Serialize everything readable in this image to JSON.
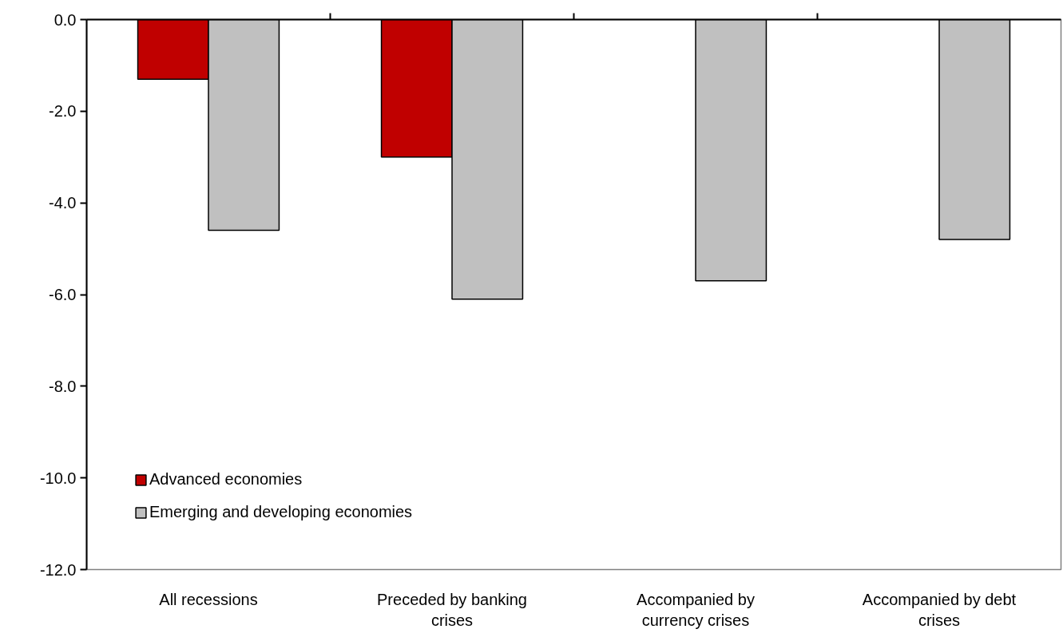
{
  "chart_data": {
    "type": "bar",
    "categories": [
      "All recessions",
      "Preceded by banking crises",
      "Accompanied by currency crises",
      "Accompanied by debt crises"
    ],
    "series": [
      {
        "name": "Advanced economies",
        "color": "#c00000",
        "values": [
          -1.3,
          -3.0,
          null,
          null
        ]
      },
      {
        "name": "Emerging and developing economies",
        "color": "#c0c0c0",
        "values": [
          -4.6,
          -6.1,
          -5.7,
          -4.8
        ]
      }
    ],
    "ylim": [
      -12,
      0
    ],
    "yticks": [
      {
        "value": 0,
        "label": "0.0"
      },
      {
        "value": -2,
        "label": "-2.0"
      },
      {
        "value": -4,
        "label": "-4.0"
      },
      {
        "value": -6,
        "label": "-6.0"
      },
      {
        "value": -8,
        "label": "-8.0"
      },
      {
        "value": -10,
        "label": "-10.0"
      },
      {
        "value": -12,
        "label": "-12.0"
      }
    ],
    "grid": false,
    "legend": "bottom left"
  }
}
